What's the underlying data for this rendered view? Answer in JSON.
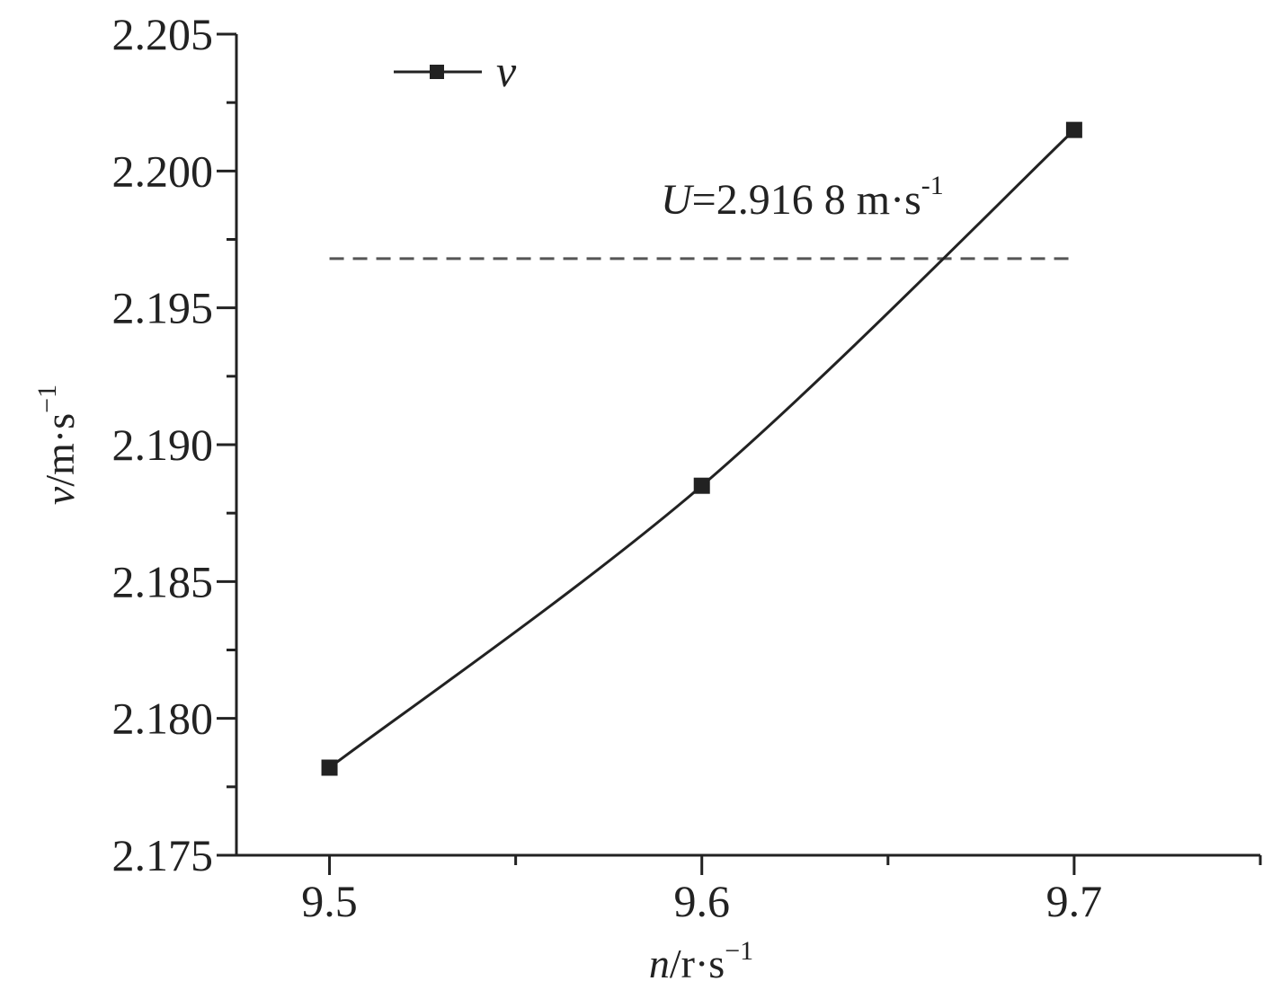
{
  "chart_data": {
    "type": "line",
    "x": [
      9.5,
      9.6,
      9.7
    ],
    "series": [
      {
        "name": "v",
        "values": [
          2.1782,
          2.1885,
          2.2015
        ],
        "color": "#222222",
        "marker": "square"
      }
    ],
    "reference_line": {
      "y": 2.1968,
      "x_range": [
        9.5,
        9.7
      ],
      "style": "dashed",
      "color": "#555555"
    },
    "annotation": {
      "var": "U",
      "eq": "=2.916 8 m·s",
      "exp": "-1"
    },
    "x_axis": {
      "range": [
        9.475,
        9.75
      ],
      "ticks": [
        9.5,
        9.6,
        9.7
      ],
      "tick_labels": [
        "9.5",
        "9.6",
        "9.7"
      ],
      "minor_ticks": [
        9.55,
        9.65,
        9.75
      ],
      "label_var": "n",
      "label_unit": "/r·s",
      "label_exp": "−1"
    },
    "y_axis": {
      "range": [
        2.175,
        2.205
      ],
      "ticks": [
        2.175,
        2.18,
        2.185,
        2.19,
        2.195,
        2.2,
        2.205
      ],
      "tick_labels": [
        "2.175",
        "2.180",
        "2.185",
        "2.190",
        "2.195",
        "2.200",
        "2.205"
      ],
      "minor_ticks": [
        2.1775,
        2.1825,
        2.1875,
        2.1925,
        2.1975,
        2.2025
      ],
      "label_var": "v",
      "label_unit": "/m·s",
      "label_exp": "−1"
    },
    "legend": {
      "placement": "top-left",
      "label": "v"
    },
    "grid": false
  }
}
